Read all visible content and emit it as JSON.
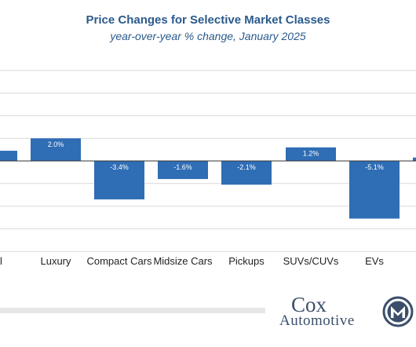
{
  "title": "Price Changes for Selective Market Classes",
  "subtitle": "year-over-year % change, January 2025",
  "brand": {
    "line1": "Cox",
    "line2": "Automotive"
  },
  "colors": {
    "bar": "#2f6db5",
    "title": "#2a5a8c",
    "grid": "#d9d9d9"
  },
  "chart_data": {
    "type": "bar",
    "title": "Price Changes for Selective Market Classes",
    "subtitle": "year-over-year % change, January 2025",
    "categories": [
      "Luxury",
      "Compact Cars",
      "Midsize Cars",
      "Pickups",
      "SUVs/CUVs",
      "EVs"
    ],
    "values": [
      2.0,
      -3.4,
      -1.6,
      -2.1,
      1.2,
      -5.1
    ],
    "labels": [
      "2.0%",
      "-3.4%",
      "-1.6%",
      "-2.1%",
      "1.2%",
      "-5.1%"
    ],
    "partial_left": {
      "category_fragment": "l",
      "value": 0.9
    },
    "partial_right": {
      "value": 0.3
    },
    "ylim": [
      -8,
      8
    ],
    "grid": true,
    "legend": "none"
  }
}
